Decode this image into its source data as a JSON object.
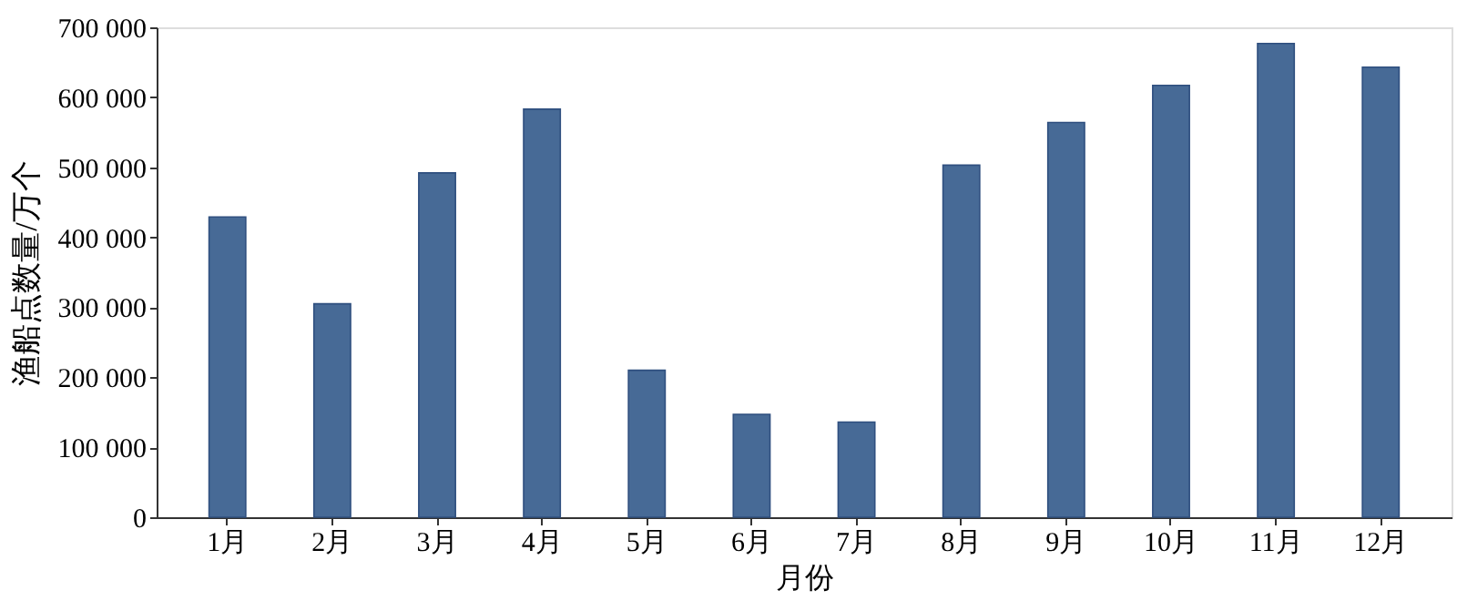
{
  "chart_data": {
    "type": "bar",
    "xlabel": "月份",
    "ylabel": "渔船点数量/万个",
    "categories": [
      "1月",
      "2月",
      "3月",
      "4月",
      "5月",
      "6月",
      "7月",
      "8月",
      "9月",
      "10月",
      "11月",
      "12月"
    ],
    "values": [
      429000,
      305000,
      492000,
      583000,
      210000,
      147000,
      136000,
      503000,
      564000,
      617000,
      677000,
      643000
    ],
    "color": "#476a96",
    "ylim": [
      0,
      700000
    ],
    "yticks": [
      {
        "value": 0,
        "label": "0"
      },
      {
        "value": 100000,
        "label": "100 000"
      },
      {
        "value": 200000,
        "label": "200 000"
      },
      {
        "value": 300000,
        "label": "300 000"
      },
      {
        "value": 400000,
        "label": "400 000"
      },
      {
        "value": 500000,
        "label": "500 000"
      },
      {
        "value": 600000,
        "label": "600 000"
      },
      {
        "value": 700000,
        "label": "700 000"
      }
    ],
    "grid": false
  }
}
